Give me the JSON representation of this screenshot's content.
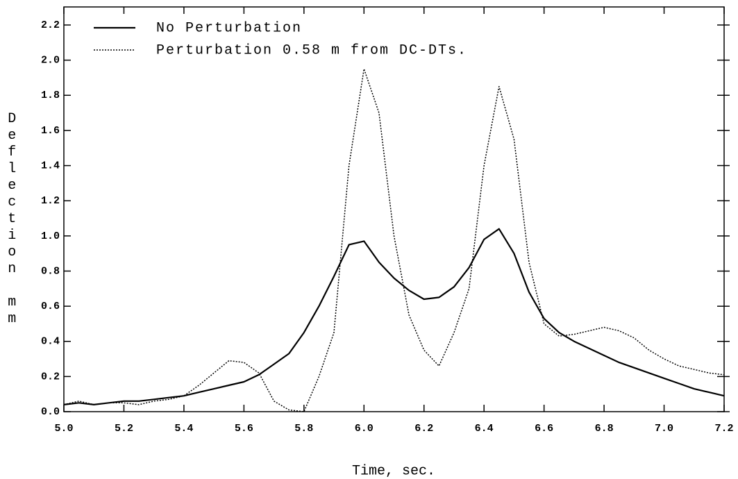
{
  "chart_data": {
    "type": "line",
    "x_label": "Time, sec.",
    "y_label": "Deflection mm",
    "x": [
      5.0,
      5.05,
      5.1,
      5.15,
      5.2,
      5.25,
      5.3,
      5.35,
      5.4,
      5.45,
      5.5,
      5.55,
      5.6,
      5.65,
      5.7,
      5.75,
      5.8,
      5.85,
      5.9,
      5.95,
      6.0,
      6.05,
      6.1,
      6.15,
      6.2,
      6.25,
      6.3,
      6.35,
      6.4,
      6.45,
      6.5,
      6.55,
      6.6,
      6.65,
      6.7,
      6.75,
      6.8,
      6.85,
      6.9,
      6.95,
      7.0,
      7.05,
      7.1,
      7.15,
      7.2
    ],
    "series": [
      {
        "name": "No Perturbation",
        "color": "#000000",
        "dash": "solid",
        "values": [
          0.04,
          0.05,
          0.04,
          0.05,
          0.06,
          0.06,
          0.07,
          0.08,
          0.09,
          0.11,
          0.13,
          0.15,
          0.17,
          0.21,
          0.27,
          0.33,
          0.45,
          0.6,
          0.77,
          0.95,
          0.97,
          0.85,
          0.76,
          0.69,
          0.64,
          0.65,
          0.71,
          0.82,
          0.98,
          1.04,
          0.9,
          0.68,
          0.53,
          0.45,
          0.4,
          0.36,
          0.32,
          0.28,
          0.25,
          0.22,
          0.19,
          0.16,
          0.13,
          0.11,
          0.09
        ]
      },
      {
        "name": "Perturbation 0.58 m from DC-DTs.",
        "color": "#000000",
        "dash": "dotted",
        "values": [
          0.04,
          0.06,
          0.04,
          0.05,
          0.05,
          0.04,
          0.06,
          0.07,
          0.09,
          0.15,
          0.22,
          0.29,
          0.28,
          0.22,
          0.06,
          0.01,
          0.0,
          0.2,
          0.45,
          1.4,
          1.95,
          1.7,
          1.0,
          0.55,
          0.35,
          0.26,
          0.45,
          0.7,
          1.4,
          1.85,
          1.55,
          0.85,
          0.5,
          0.43,
          0.44,
          0.46,
          0.48,
          0.46,
          0.42,
          0.35,
          0.3,
          0.26,
          0.24,
          0.22,
          0.21
        ]
      }
    ],
    "xlim": [
      5.0,
      7.2
    ],
    "xticks": [
      {
        "value": 5,
        "label": "5.0"
      },
      5.2,
      5.4,
      5.6,
      5.8,
      {
        "value": 6,
        "label": "6.0"
      },
      6.2,
      6.4,
      6.6,
      6.8,
      {
        "value": 7,
        "label": "7.0"
      },
      7.2
    ],
    "ylim": [
      0,
      2.2
    ],
    "yticks": [
      {
        "value": 0,
        "label": "0.0"
      },
      0.2,
      0.4,
      0.6,
      0.8,
      {
        "value": 1,
        "label": "1.0"
      },
      1.2,
      1.4,
      1.6,
      1.8,
      {
        "value": 2,
        "label": "2.0"
      },
      2.2
    ],
    "legend": "upper left"
  }
}
